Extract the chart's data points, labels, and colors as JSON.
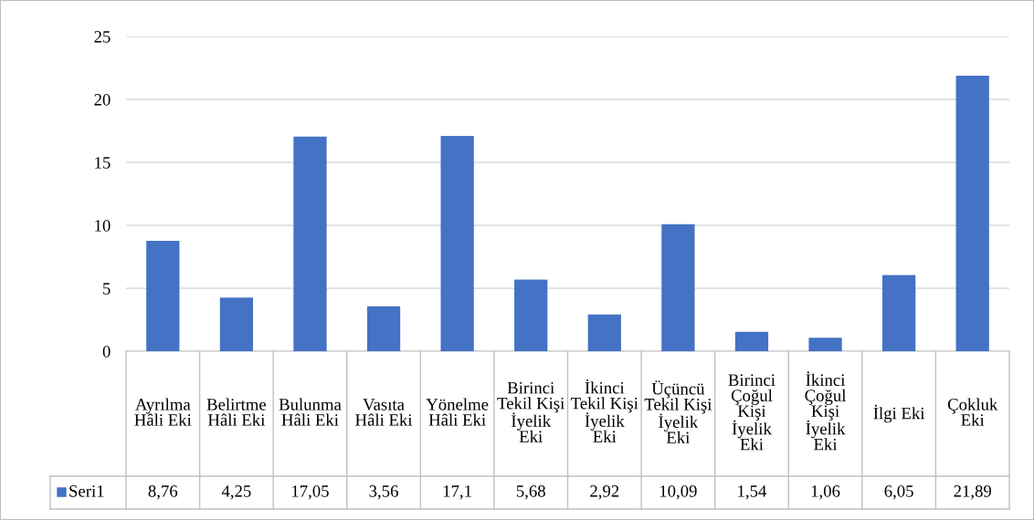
{
  "chart_data": {
    "type": "bar",
    "categories": [
      "Ayrılma Hâli Eki",
      "Belirtme Hâli Eki",
      "Bulunma Hâli Eki",
      "Vasıta Hâli Eki",
      "Yönelme Hâli Eki",
      "Birinci Tekil Kişi İyelik Eki",
      "İkinci Tekil Kişi İyelik Eki",
      "Üçüncü Tekil Kişi İyelik Eki",
      "Birinci Çoğul Kişi İyelik Eki",
      "İkinci Çoğul Kişi İyelik Eki",
      "İlgi Eki",
      "Çokluk Eki"
    ],
    "series": [
      {
        "name": "Seri1",
        "color": "#4472c4",
        "values": [
          8.76,
          4.25,
          17.05,
          3.56,
          17.1,
          5.68,
          2.92,
          10.09,
          1.54,
          1.06,
          6.05,
          21.89
        ],
        "value_labels": [
          "8,76",
          "4,25",
          "17,05",
          "3,56",
          "17,1",
          "5,68",
          "2,92",
          "10,09",
          "1,54",
          "1,06",
          "6,05",
          "21,89"
        ]
      }
    ],
    "ylim": [
      0,
      25
    ],
    "yticks": [
      0,
      5,
      10,
      15,
      20,
      25
    ],
    "grid": "y",
    "legend": "bottom"
  }
}
